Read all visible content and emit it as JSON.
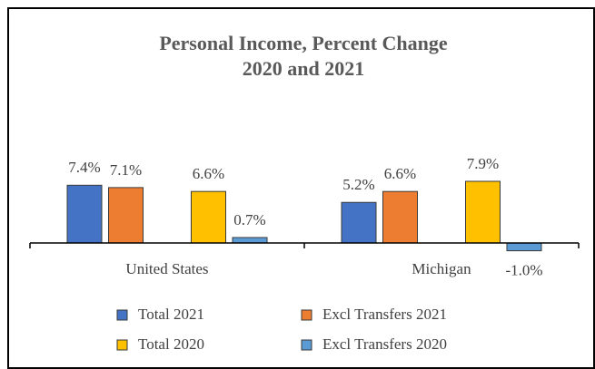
{
  "chart_data": {
    "type": "bar",
    "title": [
      "Personal Income, Percent Change",
      "2020 and 2021"
    ],
    "categories": [
      "United States",
      "Michigan"
    ],
    "series": [
      {
        "name": "Total 2021",
        "color": "#4472c4",
        "values": [
          7.4,
          5.2
        ],
        "value_labels": [
          "7.4%",
          "5.2%"
        ]
      },
      {
        "name": "Excl Transfers 2021",
        "color": "#ed7d31",
        "values": [
          7.1,
          6.6
        ],
        "value_labels": [
          "7.1%",
          "6.6%"
        ]
      },
      {
        "name": "Total 2020",
        "color": "#ffc000",
        "values": [
          6.6,
          7.9
        ],
        "value_labels": [
          "6.6%",
          "7.9%"
        ]
      },
      {
        "name": "Excl Transfers 2020",
        "color": "#5b9bd5",
        "values": [
          0.7,
          -1.0
        ],
        "value_labels": [
          "0.7%",
          "-1.0%"
        ]
      }
    ],
    "legend": "bottom"
  }
}
